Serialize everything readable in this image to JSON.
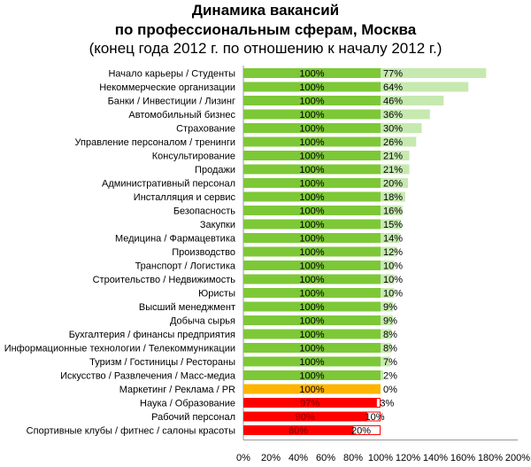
{
  "chart_data": {
    "type": "bar",
    "stacked": true,
    "orientation": "horizontal",
    "title": "Динамика вакансий",
    "subtitle": "по профессиональным сферам, Москва",
    "subtitle2": "(конец года 2012 г. по отношению к началу 2012 г.)",
    "xlim": [
      0,
      200
    ],
    "xticks": [
      "0%",
      "20%",
      "40%",
      "60%",
      "80%",
      "100%",
      "120%",
      "140%",
      "160%",
      "180%",
      "200%"
    ],
    "categories": [
      "Начало карьеры / Студенты",
      "Некоммерческие организации",
      "Банки / Инвестиции / Лизинг",
      "Автомобильный бизнес",
      "Страхование",
      "Управление персоналом / тренинги",
      "Консультирование",
      "Продажи",
      "Административный персонал",
      "Инсталляция и сервис",
      "Безопасность",
      "Закупки",
      "Медицина / Фармацевтика",
      "Производство",
      "Транспорт / Логистика",
      "Строительство / Недвижимость",
      "Юристы",
      "Высший менеджмент",
      "Добыча сырья",
      "Бухгалтерия / финансы предприятия",
      "Информационные технологии / Телекоммуникации",
      "Туризм / Гостиницы / Рестораны",
      "Искусство / Развлечения / Масс-медиа",
      "Маркетинг / Реклама / PR",
      "Наука / Образование",
      "Рабочий персонал",
      "Спортивные клубы / фитнес / салоны красоты"
    ],
    "series": [
      {
        "name": "base",
        "values": [
          100,
          100,
          100,
          100,
          100,
          100,
          100,
          100,
          100,
          100,
          100,
          100,
          100,
          100,
          100,
          100,
          100,
          100,
          100,
          100,
          100,
          100,
          100,
          100,
          97,
          90,
          80
        ]
      },
      {
        "name": "change",
        "values": [
          77,
          64,
          46,
          36,
          30,
          26,
          21,
          21,
          20,
          18,
          16,
          15,
          14,
          12,
          10,
          10,
          10,
          9,
          9,
          8,
          8,
          7,
          2,
          0,
          3,
          10,
          20
        ]
      }
    ],
    "colors": {
      "growth_base": "#7dc837",
      "growth_change": "#c6e9b0",
      "flat_base": "#ffb400",
      "decline_base": "#ff0000",
      "decline_change": "#ffffff"
    }
  }
}
